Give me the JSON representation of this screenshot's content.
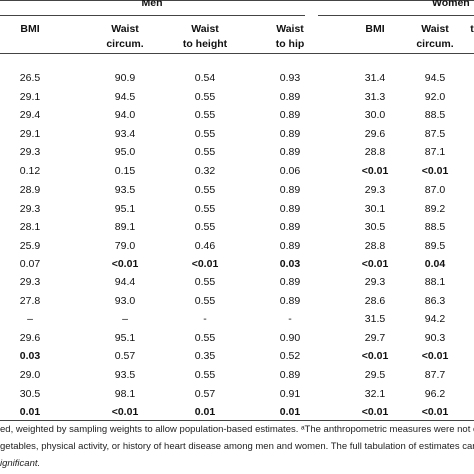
{
  "header": {
    "groups": [
      "Men",
      "Women"
    ],
    "columns": [
      [
        "BMI"
      ],
      [
        "Waist",
        "circum."
      ],
      [
        "Waist",
        "to height"
      ],
      [
        "Waist",
        "to hip"
      ],
      [
        "BMI"
      ],
      [
        "Waist",
        "circum."
      ],
      [
        "t"
      ]
    ]
  },
  "table": {
    "groups": [
      [
        [
          "26.5",
          "90.9",
          "0.54",
          "0.93",
          "31.4",
          "94.5"
        ],
        [
          "29.1",
          "94.5",
          "0.55",
          "0.89",
          "31.3",
          "92.0"
        ],
        [
          "29.4",
          "94.0",
          "0.55",
          "0.89",
          "30.0",
          "88.5"
        ],
        [
          "29.1",
          "93.4",
          "0.55",
          "0.89",
          "29.6",
          "87.5"
        ],
        [
          "29.3",
          "95.0",
          "0.55",
          "0.89",
          "28.8",
          "87.1"
        ],
        [
          "0.12",
          "0.15",
          "0.32",
          "0.06",
          {
            "text": "<0.01",
            "bold": true
          },
          {
            "text": "<0.01",
            "bold": true
          }
        ]
      ],
      [
        [
          "28.9",
          "93.5",
          "0.55",
          "0.89",
          "29.3",
          "87.0"
        ],
        [
          "29.3",
          "95.1",
          "0.55",
          "0.89",
          "30.1",
          "89.2"
        ],
        [
          "28.1",
          "89.1",
          "0.55",
          "0.89",
          "30.5",
          "88.5"
        ],
        [
          "25.9",
          "79.0",
          "0.46",
          "0.89",
          "28.8",
          "89.5"
        ],
        [
          "0.07",
          {
            "text": "<0.01",
            "bold": true
          },
          {
            "text": "<0.01",
            "bold": true
          },
          {
            "text": "0.03",
            "bold": true
          },
          {
            "text": "<0.01",
            "bold": true
          },
          {
            "text": "0.04",
            "bold": true
          }
        ]
      ],
      [
        [
          "29.3",
          "94.4",
          "0.55",
          "0.89",
          "29.3",
          "88.1"
        ],
        [
          "27.8",
          "93.0",
          "0.55",
          "0.89",
          "28.6",
          "86.3"
        ],
        [
          "–",
          "–",
          "-",
          "-",
          "31.5",
          "94.2"
        ],
        [
          "29.6",
          "95.1",
          "0.55",
          "0.90",
          "29.7",
          "90.3"
        ],
        [
          {
            "text": "0.03",
            "bold": true
          },
          "0.57",
          "0.35",
          "0.52",
          {
            "text": "<0.01",
            "bold": true
          },
          {
            "text": "<0.01",
            "bold": true
          }
        ]
      ],
      [
        [
          "29.0",
          "93.5",
          "0.55",
          "0.89",
          "29.5",
          "87.7"
        ],
        [
          "30.5",
          "98.1",
          "0.57",
          "0.91",
          "32.1",
          "96.2"
        ],
        [
          {
            "text": "0.01",
            "bold": true
          },
          {
            "text": "<0.01",
            "bold": true
          },
          {
            "text": "0.01",
            "bold": true
          },
          {
            "text": "0.01",
            "bold": true
          },
          {
            "text": "<0.01",
            "bold": true
          },
          {
            "text": "<0.01",
            "bold": true
          }
        ]
      ]
    ]
  },
  "footnotes": [
    "ed, weighted by sampling weights to allow population-based estimates. ᵃThe anthropometric measures were not consi",
    "getables, physical activity, or history of heart disease among men and women. The full tabulation of estimates can be fo",
    "ignificant."
  ]
}
